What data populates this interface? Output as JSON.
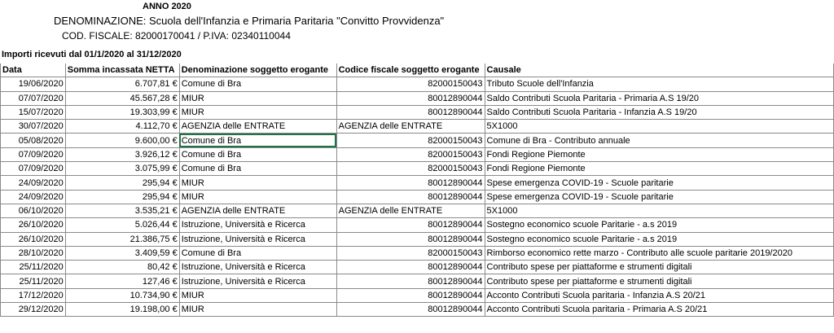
{
  "header": {
    "year": "ANNO 2020",
    "name": "DENOMINAZIONE: Scuola dell'Infanzia e Primaria Paritaria \"Convitto Provvidenza\"",
    "codes": "COD. FISCALE: 82000170041 / P.IVA: 02340110044",
    "period": "Importi ricevuti dal 01/1/2020 al 31/12/2020"
  },
  "table": {
    "columns": [
      "Data",
      "Somma incassata NETTA",
      "Denominazione soggetto erogante",
      "Codice fiscale soggetto erogante",
      "Causale"
    ],
    "rows": [
      [
        "19/06/2020",
        "6.707,81 €",
        "Comune di Bra",
        "82000150043",
        "Tributo Scuole dell'Infanzia"
      ],
      [
        "07/07/2020",
        "45.567,28 €",
        "MIUR",
        "80012890044",
        "Saldo Contributi Scuola Paritaria - Primaria A.S 19/20"
      ],
      [
        "15/07/2020",
        "19.303,99 €",
        "MIUR",
        "80012890044",
        "Saldo Contributi Scuola Paritaria - Infanzia A.S 19/20"
      ],
      [
        "30/07/2020",
        "4.112,70 €",
        "AGENZIA delle ENTRATE",
        "AGENZIA delle ENTRATE",
        "5X1000"
      ],
      [
        "05/08/2020",
        "9.600,00 €",
        "Comune di Bra",
        "82000150043",
        "Comune di Bra - Contributo annuale"
      ],
      [
        "07/09/2020",
        "3.926,12 €",
        "Comune di Bra",
        "82000150043",
        "Fondi Regione Piemonte"
      ],
      [
        "07/09/2020",
        "3.075,99 €",
        "Comune di Bra",
        "82000150043",
        "Fondi Regione Piemonte"
      ],
      [
        "24/09/2020",
        "295,94 €",
        "MIUR",
        "80012890044",
        "Spese emergenza COVID-19 - Scuole paritarie"
      ],
      [
        "24/09/2020",
        "295,94 €",
        "MIUR",
        "80012890044",
        "Spese emergenza COVID-19 - Scuole paritarie"
      ],
      [
        "06/10/2020",
        "3.535,21 €",
        "AGENZIA delle ENTRATE",
        "AGENZIA delle ENTRATE",
        "5X1000"
      ],
      [
        "26/10/2020",
        "5.026,44 €",
        "Istruzione, Università e Ricerca",
        "80012890044",
        "Sostegno economico scuole Paritarie - a.s 2019"
      ],
      [
        "26/10/2020",
        "21.386,75 €",
        "Istruzione, Università e Ricerca",
        "80012890044",
        "Sostegno economico scuole Paritarie - a.s 2019"
      ],
      [
        "28/10/2020",
        "3.409,59 €",
        "Comune di Bra",
        "82000150043",
        "Rimborso economico rette marzo -  Contributo alle scuole paritarie 2019/2020"
      ],
      [
        "25/11/2020",
        "80,42 €",
        "Istruzione, Università e Ricerca",
        "80012890044",
        "Contributo spese per piattaforme e strumenti digitali"
      ],
      [
        "25/11/2020",
        "127,46 €",
        "Istruzione, Università e Ricerca",
        "80012890044",
        "Contributo spese per piattaforme e strumenti digitali"
      ],
      [
        "17/12/2020",
        "10.734,90 €",
        "MIUR",
        "80012890044",
        "Acconto Contributi Scuola paritaria - Infanzia A.S 20/21"
      ],
      [
        "29/12/2020",
        "19.198,00 €",
        "MIUR",
        "80012890044",
        "Acconto Contributi Scuola paritaria - Primaria A.S 20/21"
      ]
    ]
  }
}
